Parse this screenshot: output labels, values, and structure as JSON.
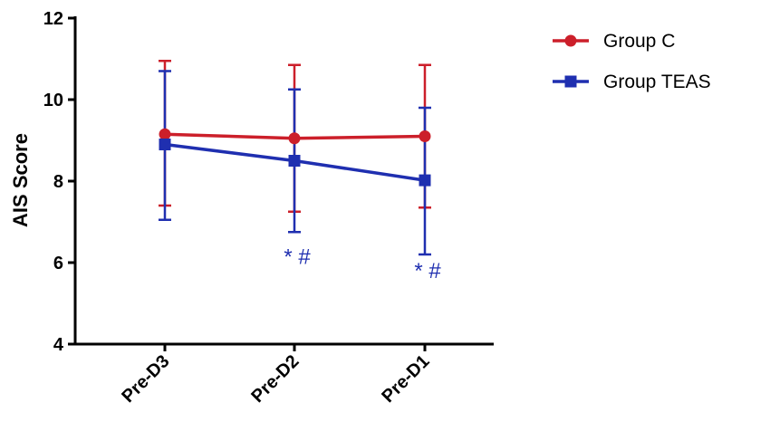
{
  "chart_data": {
    "type": "line",
    "categories": [
      "Pre-D3",
      "Pre-D2",
      "Pre-D1"
    ],
    "ylabel": "AIS Score",
    "xlabel": "",
    "ylim": [
      4,
      12
    ],
    "yticks": [
      4,
      6,
      8,
      10,
      12
    ],
    "grid": false,
    "legend_position": "top-right",
    "series": [
      {
        "name": "Group C",
        "color": "#cc1f2a",
        "marker": "circle",
        "values": [
          9.15,
          9.05,
          9.1
        ],
        "error_upper": [
          10.95,
          10.85,
          10.85
        ],
        "error_lower": [
          7.4,
          7.25,
          7.35
        ]
      },
      {
        "name": "Group TEAS",
        "color": "#1f2fb0",
        "marker": "square",
        "values": [
          8.9,
          8.5,
          8.02
        ],
        "error_upper": [
          10.7,
          10.25,
          9.8
        ],
        "error_lower": [
          7.05,
          6.75,
          6.2
        ]
      }
    ],
    "annotations": [
      {
        "category": "Pre-D2",
        "y": 6.15,
        "text": "* #",
        "color": "#1f2fb0"
      },
      {
        "category": "Pre-D1",
        "y": 5.8,
        "text": "* #",
        "color": "#1f2fb0"
      }
    ]
  }
}
